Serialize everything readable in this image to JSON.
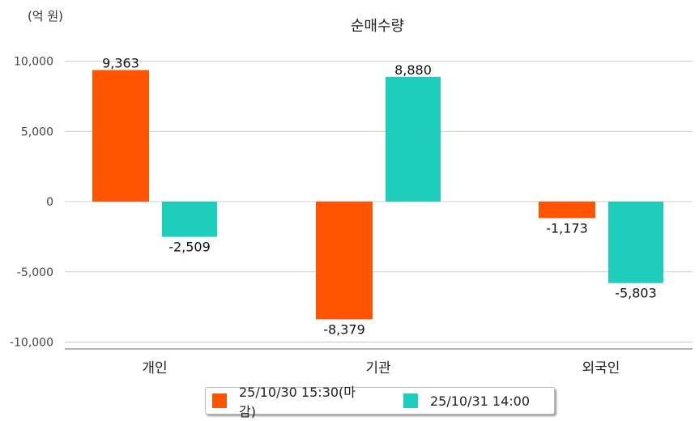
{
  "chart_data": {
    "type": "bar",
    "title": "순매수량",
    "ylabel": "(억 원)",
    "xlabel": "",
    "categories": [
      "개인",
      "기관",
      "외국인"
    ],
    "series": [
      {
        "name": "25/10/30 15:30(마감)",
        "color": "#ff5400",
        "values": [
          9363,
          -8379,
          -1173
        ],
        "labels": [
          "9,363",
          "-8,379",
          "-1,173"
        ]
      },
      {
        "name": "25/10/31 14:00",
        "color": "#1ecdbc",
        "values": [
          -2509,
          8880,
          -5803
        ],
        "labels": [
          "-2,509",
          "8,880",
          "-5,803"
        ]
      }
    ],
    "ylim": [
      -10000,
      10000
    ],
    "yticks": [
      10000,
      5000,
      0,
      -5000,
      -10000
    ],
    "ytick_labels": [
      "10,000",
      "5,000",
      "0",
      "-5,000",
      "-10,000"
    ],
    "grid": true,
    "legend": "bottom-center"
  }
}
